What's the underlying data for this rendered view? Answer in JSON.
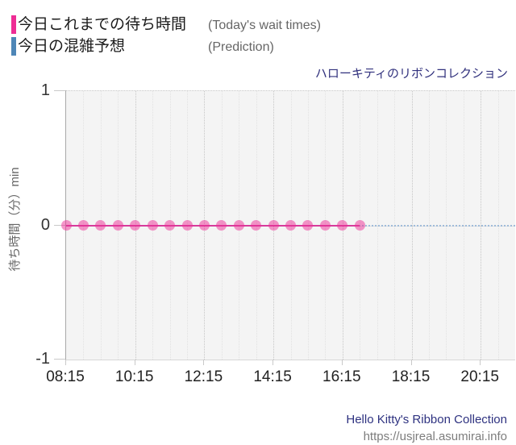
{
  "legend": {
    "items": [
      {
        "label_ja": "今日これまでの待ち時間",
        "label_en": "(Today's wait times)",
        "color": "#ee2d95"
      },
      {
        "label_ja": "今日の混雑予想",
        "label_en": "(Prediction)",
        "color": "#4e86b7"
      }
    ]
  },
  "watermark": {
    "line1": "Hello Kitty's Ribbon Collection",
    "line2": "https://usjreal.asumirai.info"
  },
  "chart_data": {
    "type": "line",
    "title": "ハローキティのリボンコレクション",
    "ylabel": "待ち時間（分）min",
    "ylim": [
      -1,
      1
    ],
    "yticks": [
      "1",
      "0",
      "-1"
    ],
    "x_range": [
      "08:15",
      "21:15"
    ],
    "xticks": [
      "08:15",
      "10:15",
      "12:15",
      "14:15",
      "16:15",
      "18:15",
      "20:15"
    ],
    "grid": {
      "vertical_minor_every_min": 30,
      "vertical_major_at_ticks": true,
      "horizontal_at": [
        0
      ]
    },
    "series": [
      {
        "name": "今日これまでの待ち時間 (Today's wait times)",
        "style": "line+dots",
        "line_color": "#d63c9c",
        "dot_color": "rgba(238,45,149,0.5)",
        "x": [
          "08:15",
          "08:45",
          "09:15",
          "09:45",
          "10:15",
          "10:45",
          "11:15",
          "11:45",
          "12:15",
          "12:45",
          "13:15",
          "13:45",
          "14:15",
          "14:45",
          "15:15",
          "15:45",
          "16:15",
          "16:45"
        ],
        "values": [
          0,
          0,
          0,
          0,
          0,
          0,
          0,
          0,
          0,
          0,
          0,
          0,
          0,
          0,
          0,
          0,
          0,
          0
        ]
      },
      {
        "name": "今日の混雑予想 (Prediction)",
        "style": "dotted-line",
        "line_color": "#9fbcda",
        "x": [
          "08:15",
          "21:15"
        ],
        "values": [
          0,
          0
        ]
      }
    ]
  }
}
